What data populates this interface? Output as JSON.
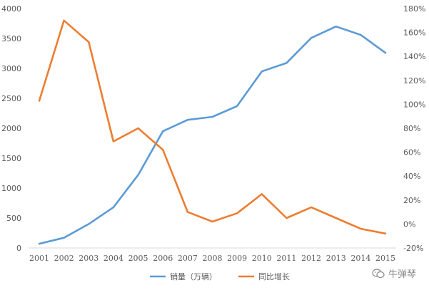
{
  "chart_data": {
    "type": "line",
    "categories": [
      "2001",
      "2002",
      "2003",
      "2004",
      "2005",
      "2006",
      "2007",
      "2008",
      "2009",
      "2010",
      "2011",
      "2012",
      "2013",
      "2014",
      "2015"
    ],
    "series": [
      {
        "name": "销量（万辆）",
        "axis": "left",
        "color": "#5b9bd5",
        "values": [
          70,
          170,
          400,
          680,
          1220,
          1950,
          2140,
          2190,
          2370,
          2950,
          3090,
          3510,
          3700,
          3560,
          3260
        ]
      },
      {
        "name": "同比增长",
        "axis": "right",
        "color": "#ed7d31",
        "values": [
          103,
          170,
          152,
          69,
          80,
          62,
          10,
          2,
          9,
          25,
          5,
          14,
          5,
          -4,
          -8
        ]
      }
    ],
    "y_left": {
      "min": 0,
      "max": 4000,
      "ticks": [
        "0",
        "500",
        "1000",
        "1500",
        "2000",
        "2500",
        "3000",
        "3500",
        "4000"
      ]
    },
    "y_right": {
      "min": -20,
      "max": 180,
      "ticks": [
        "-20%",
        "0%",
        "20%",
        "40%",
        "60%",
        "80%",
        "100%",
        "120%",
        "140%",
        "160%",
        "180%"
      ]
    },
    "grid": false,
    "legend_position": "bottom"
  },
  "watermark": {
    "text": "牛弹琴"
  }
}
